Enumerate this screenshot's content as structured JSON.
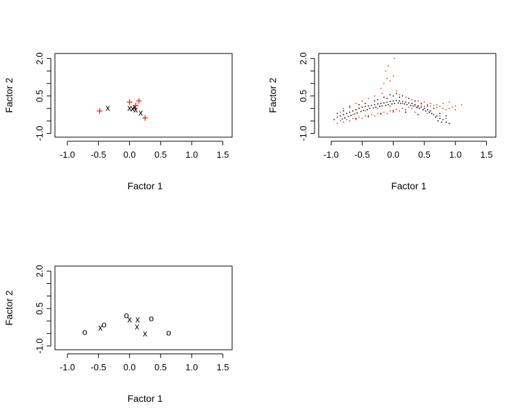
{
  "chart_data": [
    {
      "panel": "top-left",
      "type": "scatter",
      "title": "",
      "xlabel": "Factor 1",
      "ylabel": "Factor 2",
      "xlim": [
        -1.2,
        1.65
      ],
      "ylim": [
        -1.15,
        2.2
      ],
      "xticks": [
        "-1.0",
        "-0.5",
        "0.0",
        "0.5",
        "1.0",
        "1.5"
      ],
      "xtick_values": [
        -1.0,
        -0.5,
        0.0,
        0.5,
        1.0,
        1.5
      ],
      "yticks": [
        "-1.0",
        "0.5",
        "2.0"
      ],
      "ytick_values": [
        -1.0,
        0.5,
        2.0
      ],
      "yminor": [
        -0.5,
        0.0,
        1.0,
        1.5
      ],
      "series": [
        {
          "marker": "x",
          "color": "#000000",
          "points": [
            [
              -0.35,
              0.05
            ],
            [
              0.0,
              0.05
            ],
            [
              0.05,
              0.02
            ],
            [
              0.08,
              0.08
            ],
            [
              0.1,
              -0.02
            ],
            [
              0.18,
              -0.15
            ]
          ]
        },
        {
          "marker": "+",
          "color": "#e8321e",
          "points": [
            [
              -0.48,
              -0.1
            ],
            [
              0.0,
              0.25
            ],
            [
              0.15,
              0.3
            ],
            [
              0.25,
              -0.38
            ],
            [
              0.1,
              0.12
            ]
          ]
        }
      ]
    },
    {
      "panel": "top-right",
      "type": "scatter",
      "title": "",
      "xlabel": "Factor 1",
      "ylabel": "Factor 2",
      "xlim": [
        -1.2,
        1.65
      ],
      "ylim": [
        -1.15,
        2.2
      ],
      "xticks": [
        "-1.0",
        "-0.5",
        "0.0",
        "0.5",
        "1.0",
        "1.5"
      ],
      "xtick_values": [
        -1.0,
        -0.5,
        0.0,
        0.5,
        1.0,
        1.5
      ],
      "yticks": [
        "-1.0",
        "0.5",
        "2.0"
      ],
      "ytick_values": [
        -1.0,
        0.5,
        2.0
      ],
      "yminor": [
        -0.5,
        0.0,
        1.0,
        1.5
      ],
      "series": [
        {
          "marker": "dot",
          "color": "#000000",
          "points": [
            [
              -0.95,
              -0.45
            ],
            [
              -0.9,
              -0.35
            ],
            [
              -0.85,
              -0.3
            ],
            [
              -0.82,
              -0.42
            ],
            [
              -0.8,
              -0.25
            ],
            [
              -0.78,
              -0.38
            ],
            [
              -0.75,
              -0.2
            ],
            [
              -0.72,
              -0.32
            ],
            [
              -0.7,
              -0.15
            ],
            [
              -0.68,
              -0.28
            ],
            [
              -0.65,
              -0.1
            ],
            [
              -0.62,
              -0.22
            ],
            [
              -0.6,
              -0.05
            ],
            [
              -0.58,
              -0.18
            ],
            [
              -0.55,
              0.0
            ],
            [
              -0.52,
              -0.12
            ],
            [
              -0.5,
              0.05
            ],
            [
              -0.48,
              -0.08
            ],
            [
              -0.45,
              0.08
            ],
            [
              -0.42,
              -0.05
            ],
            [
              -0.4,
              0.1
            ],
            [
              -0.38,
              0.0
            ],
            [
              -0.35,
              0.12
            ],
            [
              -0.32,
              0.02
            ],
            [
              -0.3,
              0.15
            ],
            [
              -0.28,
              0.05
            ],
            [
              -0.25,
              0.18
            ],
            [
              -0.22,
              0.08
            ],
            [
              -0.2,
              0.2
            ],
            [
              -0.18,
              0.1
            ],
            [
              -0.15,
              0.22
            ],
            [
              -0.12,
              0.12
            ],
            [
              -0.1,
              0.25
            ],
            [
              -0.08,
              0.15
            ],
            [
              -0.05,
              0.28
            ],
            [
              -0.02,
              0.18
            ],
            [
              0.0,
              0.3
            ],
            [
              0.02,
              0.2
            ],
            [
              0.05,
              0.32
            ],
            [
              0.08,
              0.22
            ],
            [
              0.1,
              0.3
            ],
            [
              0.12,
              0.2
            ],
            [
              0.15,
              0.28
            ],
            [
              0.18,
              0.18
            ],
            [
              0.2,
              0.25
            ],
            [
              0.22,
              0.15
            ],
            [
              0.25,
              0.22
            ],
            [
              0.28,
              0.12
            ],
            [
              0.3,
              0.2
            ],
            [
              0.32,
              0.1
            ],
            [
              0.35,
              0.15
            ],
            [
              0.38,
              0.05
            ],
            [
              0.4,
              0.1
            ],
            [
              0.42,
              0.0
            ],
            [
              0.45,
              0.05
            ],
            [
              0.48,
              -0.05
            ],
            [
              0.5,
              0.0
            ],
            [
              0.52,
              -0.1
            ],
            [
              0.55,
              -0.05
            ],
            [
              0.58,
              -0.15
            ],
            [
              0.6,
              -0.1
            ],
            [
              0.62,
              -0.2
            ],
            [
              0.65,
              -0.25
            ],
            [
              0.68,
              -0.35
            ],
            [
              0.7,
              -0.3
            ],
            [
              0.72,
              -0.5
            ],
            [
              0.75,
              -0.4
            ],
            [
              0.78,
              -0.55
            ],
            [
              0.8,
              -0.45
            ],
            [
              0.85,
              -0.55
            ],
            [
              0.9,
              -0.6
            ],
            [
              -0.6,
              -0.4
            ],
            [
              -0.4,
              -0.3
            ],
            [
              -0.2,
              -0.2
            ],
            [
              0.0,
              -0.1
            ],
            [
              0.2,
              -0.15
            ],
            [
              0.4,
              -0.25
            ],
            [
              -0.3,
              0.3
            ],
            [
              -0.1,
              0.4
            ],
            [
              0.1,
              0.45
            ],
            [
              0.3,
              0.35
            ],
            [
              0.0,
              0.5
            ],
            [
              0.05,
              0.6
            ],
            [
              -0.05,
              0.55
            ],
            [
              0.15,
              0.5
            ],
            [
              -0.15,
              0.45
            ],
            [
              0.25,
              0.4
            ],
            [
              -0.25,
              0.35
            ],
            [
              0.35,
              0.3
            ],
            [
              -0.45,
              0.2
            ],
            [
              0.45,
              0.2
            ],
            [
              -0.55,
              0.15
            ],
            [
              0.55,
              0.1
            ],
            [
              -0.7,
              0.05
            ],
            [
              0.65,
              0.0
            ],
            [
              -0.8,
              -0.1
            ],
            [
              0.75,
              -0.2
            ],
            [
              -0.9,
              -0.2
            ],
            [
              0.85,
              -0.3
            ]
          ]
        },
        {
          "marker": "dot",
          "color": "#e8321e",
          "points": [
            [
              -0.9,
              -0.6
            ],
            [
              -0.85,
              -0.5
            ],
            [
              -0.8,
              -0.55
            ],
            [
              -0.75,
              -0.45
            ],
            [
              -0.7,
              -0.5
            ],
            [
              -0.65,
              -0.4
            ],
            [
              -0.6,
              -0.45
            ],
            [
              -0.55,
              -0.35
            ],
            [
              -0.5,
              -0.4
            ],
            [
              -0.45,
              -0.3
            ],
            [
              -0.4,
              -0.35
            ],
            [
              -0.35,
              -0.25
            ],
            [
              -0.3,
              -0.3
            ],
            [
              -0.25,
              -0.2
            ],
            [
              -0.2,
              -0.25
            ],
            [
              -0.15,
              -0.15
            ],
            [
              -0.1,
              -0.2
            ],
            [
              -0.05,
              -0.1
            ],
            [
              0.0,
              -0.15
            ],
            [
              0.05,
              -0.05
            ],
            [
              0.1,
              -0.1
            ],
            [
              0.15,
              0.0
            ],
            [
              0.2,
              -0.05
            ],
            [
              0.25,
              0.05
            ],
            [
              0.3,
              0.0
            ],
            [
              0.35,
              0.1
            ],
            [
              0.4,
              0.05
            ],
            [
              0.45,
              0.12
            ],
            [
              0.5,
              0.08
            ],
            [
              0.55,
              0.15
            ],
            [
              0.6,
              0.1
            ],
            [
              0.65,
              0.12
            ],
            [
              0.7,
              0.05
            ],
            [
              0.75,
              0.08
            ],
            [
              0.8,
              0.0
            ],
            [
              0.85,
              -0.05
            ],
            [
              0.9,
              0.0
            ],
            [
              0.95,
              0.05
            ],
            [
              1.0,
              0.1
            ],
            [
              1.1,
              0.15
            ],
            [
              -0.2,
              0.8
            ],
            [
              -0.15,
              1.0
            ],
            [
              -0.1,
              1.2
            ],
            [
              -0.05,
              1.1
            ],
            [
              0.0,
              1.3
            ],
            [
              -0.12,
              1.5
            ],
            [
              -0.08,
              1.7
            ],
            [
              0.02,
              2.0
            ],
            [
              -0.18,
              0.6
            ],
            [
              0.05,
              0.7
            ],
            [
              -0.3,
              0.5
            ],
            [
              0.1,
              0.55
            ],
            [
              -0.4,
              0.4
            ],
            [
              0.2,
              0.45
            ],
            [
              -0.5,
              0.3
            ],
            [
              0.3,
              0.35
            ],
            [
              -0.6,
              0.2
            ],
            [
              0.4,
              0.3
            ],
            [
              -0.7,
              0.1
            ],
            [
              0.5,
              0.25
            ],
            [
              -0.8,
              0.0
            ],
            [
              0.6,
              0.2
            ],
            [
              -0.85,
              -0.15
            ],
            [
              0.7,
              0.15
            ],
            [
              0.8,
              0.2
            ],
            [
              0.9,
              0.25
            ],
            [
              1.0,
              -0.05
            ],
            [
              -0.25,
              0.0
            ],
            [
              -0.05,
              0.1
            ],
            [
              0.15,
              0.2
            ],
            [
              0.35,
              -0.15
            ],
            [
              -0.45,
              -0.1
            ],
            [
              0.55,
              -0.2
            ],
            [
              -0.65,
              -0.25
            ],
            [
              0.75,
              -0.3
            ],
            [
              0.85,
              -0.4
            ]
          ]
        }
      ]
    },
    {
      "panel": "bottom-left",
      "type": "scatter",
      "title": "",
      "xlabel": "Factor 1",
      "ylabel": "Factor 2",
      "xlim": [
        -1.2,
        1.65
      ],
      "ylim": [
        -1.15,
        2.2
      ],
      "xticks": [
        "-1.0",
        "-0.5",
        "0.0",
        "0.5",
        "1.0",
        "1.5"
      ],
      "xtick_values": [
        -1.0,
        -0.5,
        0.0,
        0.5,
        1.0,
        1.5
      ],
      "yticks": [
        "-1.0",
        "0.5",
        "2.0"
      ],
      "ytick_values": [
        -1.0,
        0.5,
        2.0
      ],
      "yminor": [
        -0.5,
        0.0,
        1.0,
        1.5
      ],
      "series": [
        {
          "marker": "o",
          "color": "#000000",
          "points": [
            [
              -0.72,
              -0.42
            ],
            [
              -0.41,
              -0.12
            ],
            [
              -0.05,
              0.25
            ],
            [
              0.35,
              0.12
            ],
            [
              0.63,
              -0.45
            ]
          ]
        },
        {
          "marker": "x",
          "color": "#000000",
          "points": [
            [
              -0.47,
              -0.25
            ],
            [
              0.0,
              0.08
            ],
            [
              0.13,
              0.08
            ],
            [
              0.12,
              -0.2
            ],
            [
              0.25,
              -0.48
            ]
          ]
        }
      ]
    }
  ]
}
